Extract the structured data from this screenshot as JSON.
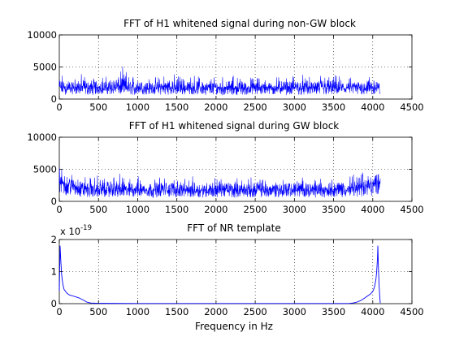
{
  "chart_data": [
    {
      "type": "line",
      "title": "FFT of H1 whitened signal during non-GW block",
      "xlabel": "",
      "ylabel": "",
      "xlim": [
        0,
        4500
      ],
      "ylim": [
        0,
        10000
      ],
      "xticks": [
        "0",
        "500",
        "1000",
        "1500",
        "2000",
        "2500",
        "3000",
        "3500",
        "4000",
        "4500"
      ],
      "yticks": [
        "0",
        "5000",
        "10000"
      ],
      "grid": true,
      "color": "#0000ff",
      "series": [
        {
          "x": [
            0,
            100,
            200,
            300,
            400,
            500,
            600,
            700,
            800,
            900,
            1000,
            1100,
            1200,
            1300,
            1400,
            1500,
            1600,
            1700,
            1800,
            1900,
            2000,
            2100,
            2200,
            2300,
            2400,
            2500,
            2600,
            2700,
            2800,
            2900,
            3000,
            3100,
            3200,
            3300,
            3400,
            3500,
            3600,
            3700,
            3800,
            3900,
            4000,
            4096
          ],
          "low": [
            600,
            700,
            800,
            700,
            650,
            750,
            800,
            700,
            650,
            700,
            600,
            700,
            750,
            650,
            700,
            650,
            700,
            750,
            700,
            650,
            700,
            600,
            650,
            700,
            650,
            700,
            600,
            650,
            700,
            650,
            700,
            650,
            700,
            650,
            600,
            700,
            650,
            700,
            650,
            700,
            650,
            600
          ],
          "high": [
            4200,
            3300,
            3600,
            4100,
            3300,
            3900,
            3500,
            4300,
            5300,
            3600,
            3900,
            3500,
            3300,
            3900,
            3600,
            4100,
            3300,
            3900,
            3700,
            3400,
            3800,
            3600,
            3900,
            3400,
            3300,
            3500,
            3700,
            3300,
            3800,
            3600,
            3700,
            3900,
            3400,
            3600,
            4500,
            3800,
            3600,
            3400,
            3500,
            3700,
            4200,
            3000
          ],
          "mean": [
            1900,
            1800,
            1800,
            1900,
            1800,
            1850,
            1800,
            1900,
            2000,
            1800,
            1850,
            1800,
            1800,
            1850,
            1800,
            1900,
            1750,
            1850,
            1800,
            1750,
            1800,
            1800,
            1850,
            1750,
            1750,
            1800,
            1800,
            1750,
            1850,
            1800,
            1800,
            1850,
            1750,
            1800,
            1900,
            1850,
            1800,
            1750,
            1800,
            1850,
            1900,
            1700
          ]
        }
      ]
    },
    {
      "type": "line",
      "title": "FFT of H1 whitened signal during GW block",
      "xlabel": "",
      "ylabel": "",
      "xlim": [
        0,
        4500
      ],
      "ylim": [
        0,
        10000
      ],
      "xticks": [
        "0",
        "500",
        "1000",
        "1500",
        "2000",
        "2500",
        "3000",
        "3500",
        "4000",
        "4500"
      ],
      "yticks": [
        "0",
        "5000",
        "10000"
      ],
      "grid": true,
      "color": "#0000ff",
      "series": [
        {
          "x": [
            0,
            100,
            200,
            300,
            400,
            500,
            600,
            700,
            800,
            900,
            1000,
            1100,
            1200,
            1300,
            1400,
            1500,
            1600,
            1700,
            1800,
            1900,
            2000,
            2100,
            2200,
            2300,
            2400,
            2500,
            2600,
            2700,
            2800,
            2900,
            3000,
            3100,
            3200,
            3300,
            3400,
            3500,
            3600,
            3700,
            3800,
            3900,
            4000,
            4096
          ],
          "low": [
            1300,
            900,
            800,
            700,
            650,
            700,
            650,
            700,
            600,
            650,
            700,
            650,
            600,
            650,
            700,
            650,
            600,
            700,
            650,
            600,
            650,
            700,
            600,
            650,
            700,
            600,
            650,
            700,
            650,
            600,
            650,
            700,
            650,
            600,
            650,
            700,
            650,
            700,
            750,
            800,
            900,
            1100
          ],
          "high": [
            5500,
            5000,
            4500,
            4000,
            3800,
            4100,
            3800,
            4700,
            4100,
            3700,
            4000,
            3900,
            3700,
            4100,
            3800,
            4600,
            3600,
            3900,
            3800,
            3600,
            4500,
            3800,
            3900,
            3700,
            3600,
            4000,
            3700,
            3600,
            4300,
            3800,
            3900,
            4100,
            3700,
            3800,
            4000,
            3900,
            3800,
            4100,
            4300,
            4600,
            5200,
            5700
          ],
          "mean": [
            3100,
            2600,
            2300,
            2100,
            1900,
            1950,
            1900,
            2000,
            1900,
            1850,
            1900,
            1850,
            1800,
            1900,
            1850,
            1950,
            1800,
            1850,
            1800,
            1800,
            1900,
            1800,
            1850,
            1800,
            1800,
            1850,
            1800,
            1800,
            1900,
            1850,
            1850,
            1900,
            1800,
            1850,
            1900,
            1900,
            1950,
            2000,
            2100,
            2300,
            2700,
            3200
          ]
        }
      ]
    },
    {
      "type": "line",
      "title": "FFT of NR template",
      "xlabel": "Frequency in Hz",
      "ylabel": "",
      "exponent": {
        "base": "x 10",
        "power": "-19"
      },
      "xlim": [
        0,
        4500
      ],
      "ylim": [
        0,
        2
      ],
      "xticks": [
        "0",
        "500",
        "1000",
        "1500",
        "2000",
        "2500",
        "3000",
        "3500",
        "4000",
        "4500"
      ],
      "yticks": [
        "0",
        "1",
        "2"
      ],
      "grid": true,
      "color": "#0000ff",
      "series": [
        {
          "x": [
            0,
            10,
            20,
            30,
            40,
            50,
            60,
            80,
            100,
            130,
            160,
            200,
            250,
            300,
            350,
            400,
            500,
            1000,
            2000,
            3000,
            3600,
            3700,
            3750,
            3800,
            3850,
            3900,
            3940,
            3970,
            4000,
            4020,
            4040,
            4050,
            4060,
            4065,
            4070,
            4080,
            4090,
            4096
          ],
          "y": [
            0.4,
            1.8,
            1.3,
            0.9,
            0.7,
            0.55,
            0.45,
            0.38,
            0.32,
            0.27,
            0.25,
            0.22,
            0.18,
            0.12,
            0.05,
            0.02,
            0.01,
            0.005,
            0.005,
            0.005,
            0.005,
            0.008,
            0.02,
            0.05,
            0.1,
            0.18,
            0.25,
            0.3,
            0.38,
            0.5,
            0.75,
            1.0,
            1.4,
            1.8,
            1.3,
            0.6,
            0.2,
            0.02
          ]
        }
      ]
    }
  ]
}
